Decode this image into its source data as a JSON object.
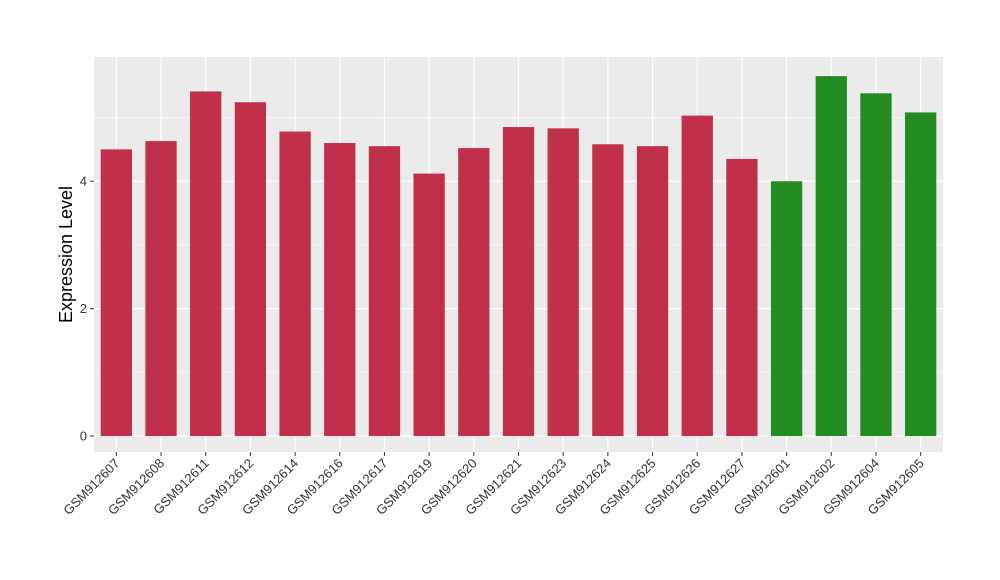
{
  "chart_data": {
    "type": "bar",
    "title": "",
    "xlabel": "",
    "ylabel": "Expression Level",
    "ylim": [
      -0.25,
      5.95
    ],
    "yticks": [
      0,
      2,
      4
    ],
    "grid": true,
    "legend": "none",
    "categories": [
      "GSM912607",
      "GSM912608",
      "GSM912611",
      "GSM912612",
      "GSM912614",
      "GSM912616",
      "GSM912617",
      "GSM912619",
      "GSM912620",
      "GSM912621",
      "GSM912623",
      "GSM912624",
      "GSM912625",
      "GSM912626",
      "GSM912627",
      "GSM912601",
      "GSM912602",
      "GSM912604",
      "GSM912605"
    ],
    "values": [
      4.5,
      4.63,
      5.41,
      5.24,
      4.78,
      4.6,
      4.55,
      4.12,
      4.52,
      4.85,
      4.83,
      4.58,
      4.55,
      5.03,
      4.35,
      4.0,
      5.65,
      5.38,
      5.08
    ],
    "bar_colors": [
      "#C0304A",
      "#C0304A",
      "#C0304A",
      "#C0304A",
      "#C0304A",
      "#C0304A",
      "#C0304A",
      "#C0304A",
      "#C0304A",
      "#C0304A",
      "#C0304A",
      "#C0304A",
      "#C0304A",
      "#C0304A",
      "#C0304A",
      "#228B22",
      "#228B22",
      "#228B22",
      "#228B22"
    ],
    "panel_background": "#EBEBEB",
    "grid_color": "#FFFFFF"
  }
}
